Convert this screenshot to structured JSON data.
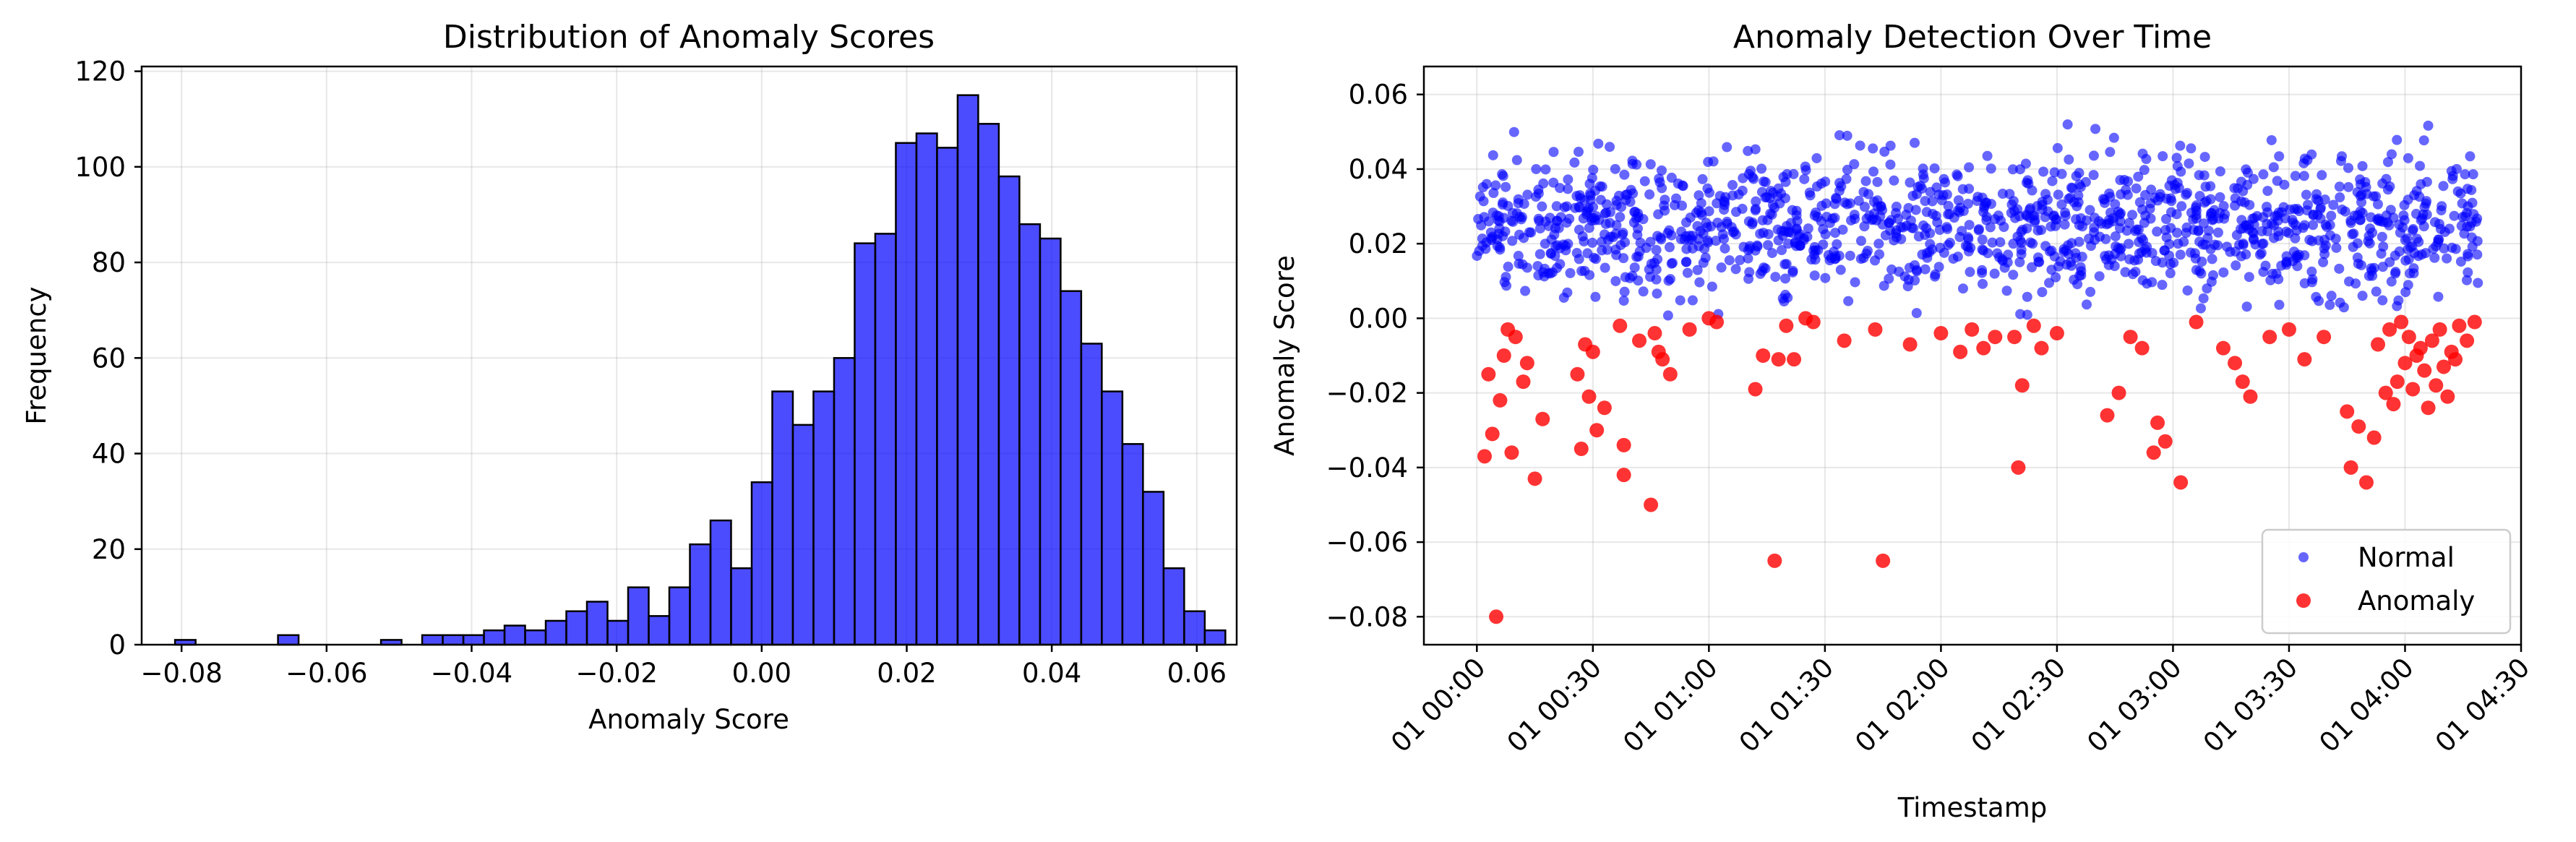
{
  "chart_data": [
    {
      "type": "bar",
      "title": "Distribution of Anomaly Scores",
      "xlabel": "Anomaly Score",
      "ylabel": "Frequency",
      "xlim": [
        -0.0855,
        0.0655
      ],
      "ylim": [
        0,
        121
      ],
      "xticks": [
        "−0.08",
        "−0.06",
        "−0.04",
        "−0.02",
        "0.00",
        "0.02",
        "0.04",
        "0.06"
      ],
      "xtick_values": [
        -0.08,
        -0.06,
        -0.04,
        -0.02,
        0.0,
        0.02,
        0.04,
        0.06
      ],
      "yticks": [
        "0",
        "20",
        "40",
        "60",
        "80",
        "100",
        "120"
      ],
      "ytick_values": [
        0,
        20,
        40,
        60,
        80,
        100,
        120
      ],
      "grid": true,
      "bar_color": "#0000ff",
      "bin_start": -0.0809,
      "bin_width": 0.00284,
      "values": [
        1,
        0,
        0,
        0,
        0,
        2,
        0,
        0,
        0,
        0,
        1,
        0,
        2,
        2,
        2,
        3,
        4,
        3,
        5,
        7,
        9,
        5,
        12,
        6,
        12,
        21,
        26,
        16,
        34,
        53,
        46,
        53,
        60,
        84,
        86,
        105,
        107,
        104,
        115,
        109,
        98,
        88,
        85,
        74,
        63,
        53,
        42,
        32,
        16,
        7,
        3
      ]
    },
    {
      "type": "scatter",
      "title": "Anomaly Detection Over Time",
      "xlabel": "Timestamp",
      "ylabel": "Anomaly Score",
      "xticks": [
        "01 00:00",
        "01 00:30",
        "01 01:00",
        "01 01:30",
        "01 02:00",
        "01 02:30",
        "01 03:00",
        "01 03:30",
        "01 04:00",
        "01 04:30"
      ],
      "xtick_minutes": [
        0,
        30,
        60,
        90,
        120,
        150,
        180,
        210,
        240,
        270
      ],
      "x_unit": "minutes",
      "xlim": [
        -13.7,
        270
      ],
      "ylim": [
        -0.0875,
        0.0675
      ],
      "yticks": [
        "−0.08",
        "−0.06",
        "−0.04",
        "−0.02",
        "0.00",
        "0.02",
        "0.04",
        "0.06"
      ],
      "ytick_values": [
        -0.08,
        -0.06,
        -0.04,
        -0.02,
        0.0,
        0.02,
        0.04,
        0.06
      ],
      "grid": true,
      "legend_position": "lower right",
      "series": [
        {
          "name": "Normal",
          "color": "#0000ff",
          "count": 1340,
          "y_range": [
            0.0,
            0.061
          ],
          "x_range_minutes": [
            0,
            259
          ]
        },
        {
          "name": "Anomaly",
          "color": "#ff0000",
          "points": [
            [
              5,
              -0.08
            ],
            [
              45,
              -0.05
            ],
            [
              77,
              -0.065
            ],
            [
              105,
              -0.065
            ],
            [
              2,
              -0.037
            ],
            [
              4,
              -0.031
            ],
            [
              6,
              -0.022
            ],
            [
              9,
              -0.036
            ],
            [
              12,
              -0.017
            ],
            [
              15,
              -0.043
            ],
            [
              17,
              -0.027
            ],
            [
              3,
              -0.015
            ],
            [
              7,
              -0.01
            ],
            [
              10,
              -0.005
            ],
            [
              13,
              -0.012
            ],
            [
              8,
              -0.003
            ],
            [
              27,
              -0.035
            ],
            [
              29,
              -0.021
            ],
            [
              31,
              -0.03
            ],
            [
              33,
              -0.024
            ],
            [
              30,
              -0.009
            ],
            [
              28,
              -0.007
            ],
            [
              26,
              -0.015
            ],
            [
              38,
              -0.034
            ],
            [
              38,
              -0.042
            ],
            [
              37,
              -0.002
            ],
            [
              42,
              -0.006
            ],
            [
              46,
              -0.004
            ],
            [
              47,
              -0.009
            ],
            [
              50,
              -0.015
            ],
            [
              48,
              -0.011
            ],
            [
              55,
              -0.003
            ],
            [
              60,
              0.0
            ],
            [
              62,
              -0.001
            ],
            [
              72,
              -0.019
            ],
            [
              74,
              -0.01
            ],
            [
              78,
              -0.011
            ],
            [
              82,
              -0.011
            ],
            [
              85,
              0.0
            ],
            [
              80,
              -0.002
            ],
            [
              87,
              -0.001
            ],
            [
              95,
              -0.006
            ],
            [
              103,
              -0.003
            ],
            [
              112,
              -0.007
            ],
            [
              120,
              -0.004
            ],
            [
              125,
              -0.009
            ],
            [
              128,
              -0.003
            ],
            [
              131,
              -0.008
            ],
            [
              134,
              -0.005
            ],
            [
              139,
              -0.005
            ],
            [
              140,
              -0.04
            ],
            [
              141,
              -0.018
            ],
            [
              144,
              -0.002
            ],
            [
              146,
              -0.008
            ],
            [
              150,
              -0.004
            ],
            [
              163,
              -0.026
            ],
            [
              166,
              -0.02
            ],
            [
              169,
              -0.005
            ],
            [
              172,
              -0.008
            ],
            [
              175,
              -0.036
            ],
            [
              176,
              -0.028
            ],
            [
              178,
              -0.033
            ],
            [
              182,
              -0.044
            ],
            [
              186,
              -0.001
            ],
            [
              193,
              -0.008
            ],
            [
              196,
              -0.012
            ],
            [
              198,
              -0.017
            ],
            [
              200,
              -0.021
            ],
            [
              205,
              -0.005
            ],
            [
              210,
              -0.003
            ],
            [
              214,
              -0.011
            ],
            [
              219,
              -0.005
            ],
            [
              225,
              -0.025
            ],
            [
              226,
              -0.04
            ],
            [
              228,
              -0.029
            ],
            [
              230,
              -0.044
            ],
            [
              232,
              -0.032
            ],
            [
              235,
              -0.02
            ],
            [
              237,
              -0.023
            ],
            [
              238,
              -0.017
            ],
            [
              240,
              -0.012
            ],
            [
              243,
              -0.01
            ],
            [
              246,
              -0.024
            ],
            [
              248,
              -0.018
            ],
            [
              250,
              -0.013
            ],
            [
              251,
              -0.021
            ],
            [
              233,
              -0.007
            ],
            [
              236,
              -0.003
            ],
            [
              239,
              -0.001
            ],
            [
              241,
              -0.005
            ],
            [
              244,
              -0.008
            ],
            [
              247,
              -0.006
            ],
            [
              249,
              -0.003
            ],
            [
              252,
              -0.009
            ],
            [
              254,
              -0.002
            ],
            [
              256,
              -0.006
            ],
            [
              258,
              -0.001
            ],
            [
              245,
              -0.014
            ],
            [
              242,
              -0.019
            ],
            [
              253,
              -0.011
            ]
          ]
        }
      ]
    }
  ]
}
